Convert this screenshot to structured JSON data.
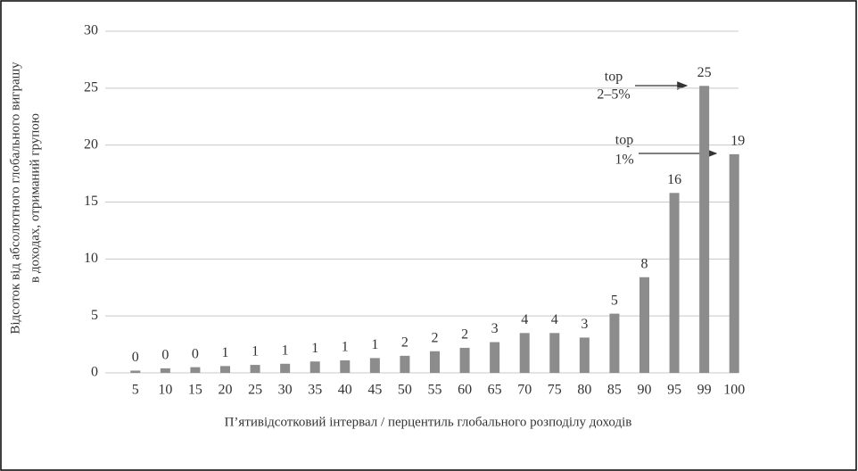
{
  "chart_data": {
    "type": "bar",
    "y_label": [
      "Відсоток від абсолютного глобального виграшу",
      "в доходах, отриманий групою"
    ],
    "x_label": "П’ятивідсотковий інтервал / перцентиль глобального розподілу доходів",
    "categories": [
      "5",
      "10",
      "15",
      "20",
      "25",
      "30",
      "35",
      "40",
      "45",
      "50",
      "55",
      "60",
      "65",
      "70",
      "75",
      "80",
      "85",
      "90",
      "95",
      "99",
      "100"
    ],
    "values": [
      0.2,
      0.4,
      0.5,
      0.6,
      0.7,
      0.8,
      1.0,
      1.1,
      1.3,
      1.5,
      1.9,
      2.2,
      2.7,
      3.5,
      3.5,
      3.1,
      5.2,
      8.4,
      15.8,
      25.2,
      19.2
    ],
    "value_labels": [
      "0",
      "0",
      "0",
      "1",
      "1",
      "1",
      "1",
      "1",
      "1",
      "2",
      "2",
      "2",
      "3",
      "4",
      "4",
      "3",
      "5",
      "8",
      "16",
      "25",
      "19"
    ],
    "color": "#8c8c8c",
    "ylim": [
      0,
      30
    ],
    "yticks": [
      0,
      5,
      10,
      15,
      20,
      25,
      30
    ],
    "grid": true,
    "annotations": [
      {
        "lines": [
          "top",
          "2–5%"
        ]
      },
      {
        "lines": [
          "top",
          "1%"
        ]
      }
    ]
  }
}
